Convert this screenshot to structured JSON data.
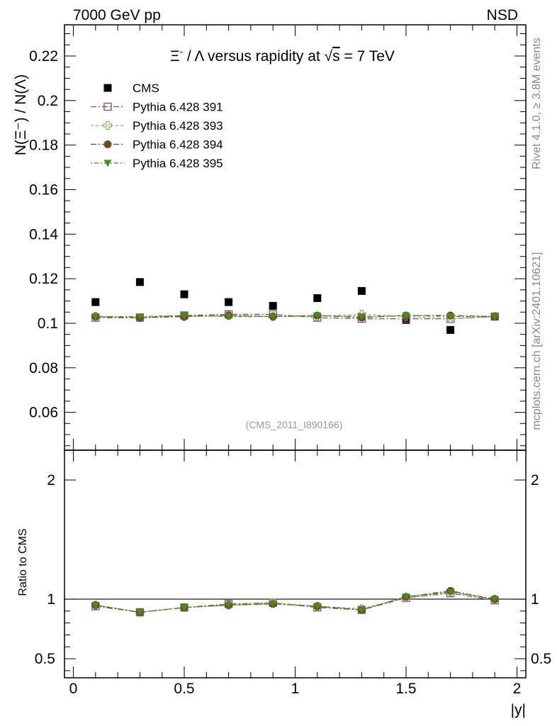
{
  "chart_data": {
    "type": "scatter",
    "header_left": "7000 GeV pp",
    "header_right": "NSD",
    "title_parts": {
      "xi": "Ξ",
      "minus": "-",
      "rest": " / Λ versus rapidity at ",
      "sqrt": "√",
      "s": "s",
      "energy": " = 7 TeV"
    },
    "ylabel_main": "N(Ξ⁻)  / N(Λ)",
    "ylabel_ratio": "Ratio to CMS",
    "xlabel": "|y|",
    "analysis_tag": "(CMS_2011_I890166)",
    "side_note_top": "Rivet 4.1.0, ≥ 3.8M events",
    "side_note_bottom": "mcplots.cern.ch [arXiv:2401.10621]",
    "xlim": [
      -0.04,
      2.04
    ],
    "ylim_main": [
      0.043,
      0.234
    ],
    "ylim_ratio": [
      0.34,
      2.25
    ],
    "x_ticks": [
      0,
      0.5,
      1,
      1.5,
      2
    ],
    "x_tick_labels": [
      "0",
      "0.5",
      "1",
      "1.5",
      "2"
    ],
    "y_ticks_main": [
      0.06,
      0.08,
      0.1,
      0.12,
      0.14,
      0.16,
      0.18,
      0.2,
      0.22
    ],
    "y_tick_labels_main": [
      "0.06",
      "0.08",
      "0.1",
      "0.12",
      "0.14",
      "0.16",
      "0.18",
      "0.2",
      "0.22"
    ],
    "y_ticks_ratio": [
      0.5,
      1,
      2
    ],
    "y_tick_labels_ratio": [
      "0.5",
      "1",
      "2"
    ],
    "x": [
      0.1,
      0.3,
      0.5,
      0.7,
      0.9,
      1.1,
      1.3,
      1.5,
      1.7,
      1.9
    ],
    "series": [
      {
        "name": "CMS",
        "marker": "filled-square",
        "color": "#000000",
        "values": [
          0.1095,
          0.1185,
          0.113,
          0.1095,
          0.1078,
          0.1113,
          0.1145,
          0.1015,
          0.097,
          0.103
        ]
      },
      {
        "name": "Pythia 6.428 391",
        "marker": "open-square",
        "color": "#7b4d6e",
        "values": [
          0.1025,
          0.1025,
          0.1035,
          0.104,
          0.104,
          0.1025,
          0.102,
          0.102,
          0.102,
          0.103
        ]
      },
      {
        "name": "Pythia 6.428 393",
        "marker": "open-cross",
        "color": "#a79a78",
        "values": [
          0.103,
          0.1025,
          0.103,
          0.1035,
          0.103,
          0.103,
          0.104,
          0.103,
          0.102,
          0.103
        ]
      },
      {
        "name": "Pythia 6.428 394",
        "marker": "filled-circle",
        "color": "#6b4a2e",
        "values": [
          0.103,
          0.1025,
          0.103,
          0.1035,
          0.103,
          0.1035,
          0.1025,
          0.1035,
          0.1035,
          0.103
        ]
      },
      {
        "name": "Pythia 6.428 395",
        "marker": "filled-triangle",
        "color": "#4a8a1e",
        "values": [
          0.103,
          0.103,
          0.1035,
          0.103,
          0.103,
          0.1035,
          0.103,
          0.1035,
          0.103,
          0.103
        ]
      }
    ],
    "ratio_series": [
      {
        "name": "Pythia 6.428 391",
        "values": [
          0.94,
          0.89,
          0.93,
          0.96,
          0.97,
          0.93,
          0.91,
          1.01,
          1.05,
          0.99
        ]
      },
      {
        "name": "Pythia 6.428 393",
        "values": [
          0.95,
          0.89,
          0.93,
          0.95,
          0.97,
          0.94,
          0.92,
          1.01,
          1.06,
          1.0
        ]
      },
      {
        "name": "Pythia 6.428 394",
        "values": [
          0.95,
          0.89,
          0.93,
          0.95,
          0.96,
          0.94,
          0.91,
          1.02,
          1.07,
          1.0
        ]
      },
      {
        "name": "Pythia 6.428 395",
        "values": [
          0.95,
          0.89,
          0.93,
          0.95,
          0.96,
          0.94,
          0.91,
          1.02,
          1.06,
          1.0
        ]
      }
    ]
  }
}
